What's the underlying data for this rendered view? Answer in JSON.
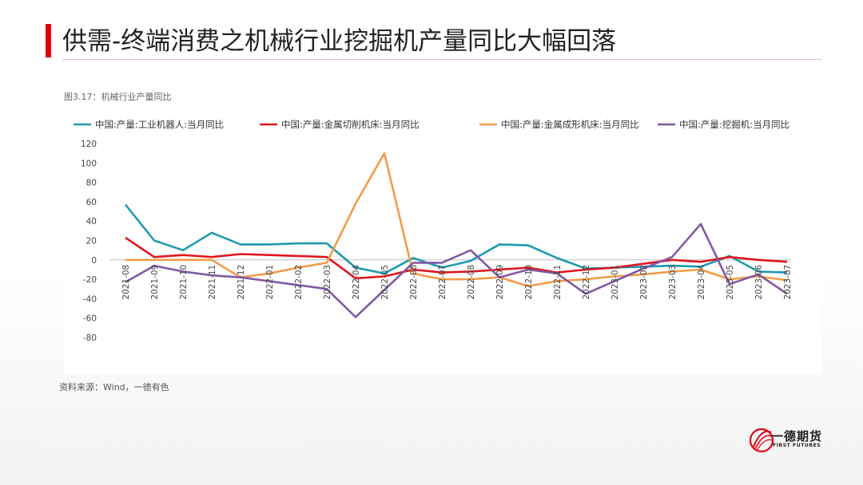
{
  "page_title": "供需-终端消费之机械行业挖掘机产量同比大幅回落",
  "figure_label": "图3.17：机械行业产量同比",
  "source": "资料来源：Wind，一德有色",
  "logo": {
    "cn": "一德期货",
    "en": "FIRST FUTURES"
  },
  "chart_data": {
    "type": "line",
    "title": "",
    "xlabel": "",
    "ylabel": "",
    "ylim": [
      -80,
      120
    ],
    "yticks": [
      120,
      100,
      80,
      60,
      40,
      20,
      0,
      -20,
      -40,
      -60,
      -80
    ],
    "grid": false,
    "legend_position": "top",
    "x": [
      "2021-08",
      "2021-09",
      "2021-10",
      "2021-11",
      "2021-12",
      "2022-01",
      "2022-02",
      "2022-03",
      "2022-04",
      "2022-05",
      "2022-06",
      "2022-07",
      "2022-08",
      "2022-09",
      "2022-10",
      "2022-11",
      "2022-12",
      "2023-01",
      "2023-02",
      "2023-03",
      "2023-04",
      "2023-05",
      "2023-06",
      "2023-07"
    ],
    "xticks": [
      "2021-08",
      "2021-09",
      "2021-10",
      "2021-11",
      "2021-12",
      "2022-01",
      "2022-02",
      "2022-03",
      "2022-04",
      "2022-05",
      "2022-06",
      "2022-07",
      "2022-08",
      "2022-09",
      "2022-10",
      "2022-11",
      "2022-12",
      "2023-01",
      "2023-02",
      "2023-03",
      "2023-04",
      "2023-05",
      "2023-06",
      "2023-07"
    ],
    "series": [
      {
        "name": "中国:产量:工业机器人:当月同比",
        "color": "#1e9ab0",
        "values": [
          57,
          20,
          10,
          28,
          16,
          16,
          17,
          17,
          -8,
          -14,
          2,
          -8,
          -1,
          16,
          15,
          2,
          -9,
          -8,
          -7,
          -6,
          -7,
          4,
          -12,
          -13
        ]
      },
      {
        "name": "中国:产量:金属切削机床:当月同比",
        "color": "#e0161d",
        "values": [
          23,
          3,
          5,
          3,
          6,
          5,
          4,
          3,
          -19,
          -17,
          -10,
          -13,
          -12,
          -10,
          -8,
          -13,
          -10,
          -8,
          -4,
          0,
          -2,
          3,
          0,
          -2
        ]
      },
      {
        "name": "中国:产量:金属成形机床:当月同比",
        "color": "#f29b48",
        "values": [
          0,
          0,
          0,
          0,
          -18,
          -14,
          -8,
          -3,
          58,
          110,
          -14,
          -20,
          -20,
          -18,
          -27,
          -22,
          -20,
          -17,
          -15,
          -12,
          -10,
          -20,
          -17,
          -21
        ]
      },
      {
        "name": "中国:产量:挖掘机:当月同比",
        "color": "#8159a6",
        "values": [
          -23,
          -6,
          -12,
          -16,
          -18,
          -22,
          -26,
          -30,
          -59,
          -31,
          -3,
          -3,
          10,
          -18,
          -10,
          -14,
          -35,
          -22,
          -9,
          3,
          37,
          -25,
          -15,
          -35
        ]
      }
    ]
  }
}
